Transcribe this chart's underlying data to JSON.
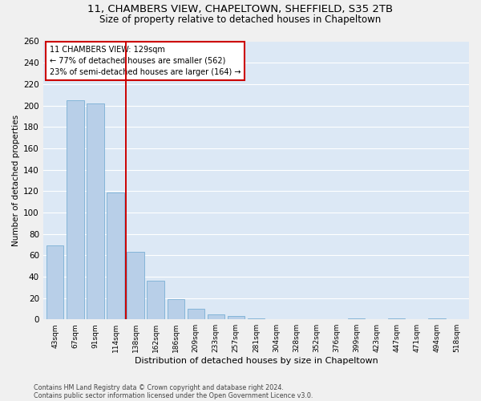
{
  "title": "11, CHAMBERS VIEW, CHAPELTOWN, SHEFFIELD, S35 2TB",
  "subtitle": "Size of property relative to detached houses in Chapeltown",
  "xlabel": "Distribution of detached houses by size in Chapeltown",
  "ylabel": "Number of detached properties",
  "categories": [
    "43sqm",
    "67sqm",
    "91sqm",
    "114sqm",
    "138sqm",
    "162sqm",
    "186sqm",
    "209sqm",
    "233sqm",
    "257sqm",
    "281sqm",
    "304sqm",
    "328sqm",
    "352sqm",
    "376sqm",
    "399sqm",
    "423sqm",
    "447sqm",
    "471sqm",
    "494sqm",
    "518sqm"
  ],
  "values": [
    69,
    205,
    202,
    119,
    63,
    36,
    19,
    10,
    5,
    3,
    1,
    0,
    0,
    0,
    0,
    1,
    0,
    1,
    0,
    1,
    0
  ],
  "bar_color": "#b8cfe8",
  "bar_edge_color": "#7aafd4",
  "vline_x_index": 3.5,
  "vline_color": "#cc0000",
  "annotation_text_line1": "11 CHAMBERS VIEW: 129sqm",
  "annotation_text_line2": "← 77% of detached houses are smaller (562)",
  "annotation_text_line3": "23% of semi-detached houses are larger (164) →",
  "annotation_box_color": "#ffffff",
  "annotation_box_edge": "#cc0000",
  "ylim": [
    0,
    260
  ],
  "yticks": [
    0,
    20,
    40,
    60,
    80,
    100,
    120,
    140,
    160,
    180,
    200,
    220,
    240,
    260
  ],
  "background_color": "#dce8f5",
  "grid_color": "#ffffff",
  "footer_line1": "Contains HM Land Registry data © Crown copyright and database right 2024.",
  "footer_line2": "Contains public sector information licensed under the Open Government Licence v3.0.",
  "title_fontsize": 9.5,
  "subtitle_fontsize": 8.5,
  "xlabel_fontsize": 8,
  "ylabel_fontsize": 7.5,
  "fig_width": 6.0,
  "fig_height": 5.0,
  "fig_dpi": 100
}
